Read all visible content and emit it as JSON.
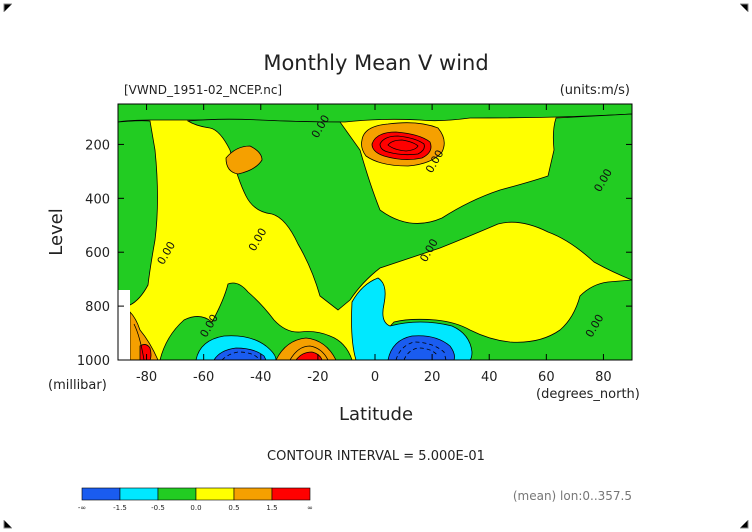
{
  "chart_data": {
    "type": "contour",
    "title": "Monthly Mean V wind",
    "file_label": "[VWND_1951-02_NCEP.nc]",
    "units_label": "(units:m/s)",
    "xlabel": "Latitude",
    "x_unit": "(degrees_north)",
    "ylabel": "Level",
    "y_unit": "(millibar)",
    "xlim": [
      -90,
      90
    ],
    "ylim": [
      1000,
      50
    ],
    "x_ticks": [
      -80,
      -60,
      -40,
      -20,
      0,
      20,
      40,
      60,
      80
    ],
    "y_ticks": [
      200,
      400,
      600,
      800,
      1000
    ],
    "contour_interval_text": "CONTOUR INTERVAL = 5.000E-01",
    "mean_note": "(mean) lon:0..357.5",
    "contour_labels": [
      {
        "text": "0.00",
        "lat": -72,
        "lev": 610
      },
      {
        "text": "0.00",
        "lat": -40,
        "lev": 560
      },
      {
        "text": "0.00",
        "lat": -57,
        "lev": 880
      },
      {
        "text": "0.00",
        "lat": -18,
        "lev": 140
      },
      {
        "text": "0.00",
        "lat": 22,
        "lev": 270
      },
      {
        "text": "0.00",
        "lat": 20,
        "lev": 600
      },
      {
        "text": "0.00",
        "lat": 81,
        "lev": 340
      },
      {
        "text": "0.00",
        "lat": 78,
        "lev": 880
      }
    ],
    "colorbar": {
      "bins": [
        {
          "color": "#1a5cf0"
        },
        {
          "color": "#00e8ff"
        },
        {
          "color": "#22cc22"
        },
        {
          "color": "#ffff00"
        },
        {
          "color": "#f5a000"
        },
        {
          "color": "#ff0000"
        }
      ],
      "labels": [
        "-∞",
        "-1.5",
        "-0.5",
        "0.0",
        "0.5",
        "1.5",
        "∞"
      ]
    }
  }
}
